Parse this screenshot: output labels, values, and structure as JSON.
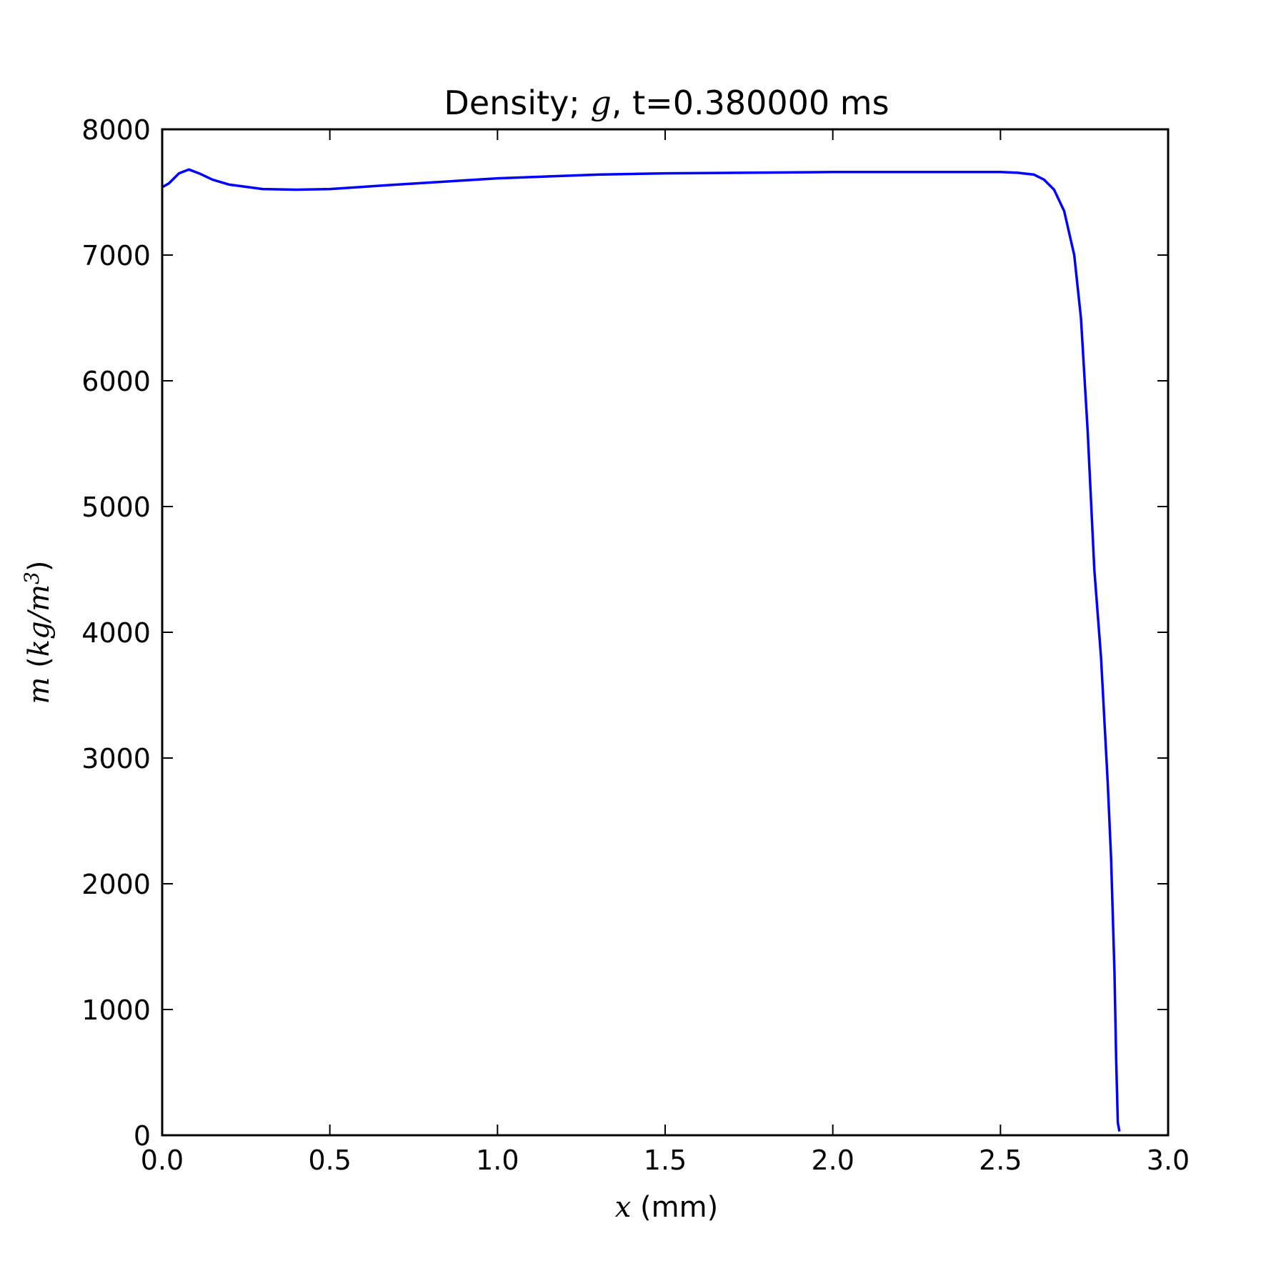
{
  "chart_data": {
    "type": "line",
    "title": {
      "prefix": "Density; ",
      "math": "g",
      "suffix": ", t=0.380000 ms"
    },
    "xlabel": {
      "math": "x",
      "text": " (mm)"
    },
    "ylabel": {
      "math_var": "m",
      "open": " (",
      "unit_main": "kg/m",
      "unit_sup": "3",
      "close": ")"
    },
    "xlim": [
      0,
      3
    ],
    "ylim": [
      0,
      8000
    ],
    "x_ticks": [
      0,
      0.5,
      1,
      1.5,
      2,
      2.5,
      3
    ],
    "x_tick_labels": [
      "0.0",
      "0.5",
      "1.0",
      "1.5",
      "2.0",
      "2.5",
      "3.0"
    ],
    "y_ticks": [
      0,
      1000,
      2000,
      3000,
      4000,
      5000,
      6000,
      7000,
      8000
    ],
    "y_tick_labels": [
      "0",
      "1000",
      "2000",
      "3000",
      "4000",
      "5000",
      "6000",
      "7000",
      "8000"
    ],
    "grid": false,
    "line_color": "#0000ff",
    "series": [
      {
        "x": [
          0.0,
          0.02,
          0.05,
          0.08,
          0.11,
          0.15,
          0.2,
          0.3,
          0.4,
          0.5,
          0.7,
          1.0,
          1.3,
          1.5,
          2.0,
          2.4,
          2.5,
          2.55,
          2.6,
          2.63,
          2.66,
          2.69,
          2.72,
          2.74,
          2.76,
          2.78,
          2.8,
          2.81,
          2.82,
          2.83,
          2.84,
          2.845,
          2.85,
          2.855
        ],
        "y": [
          7540,
          7570,
          7650,
          7680,
          7650,
          7600,
          7560,
          7525,
          7520,
          7525,
          7560,
          7610,
          7640,
          7650,
          7660,
          7660,
          7660,
          7655,
          7640,
          7600,
          7520,
          7350,
          7000,
          6500,
          5600,
          4500,
          3800,
          3300,
          2800,
          2200,
          1300,
          600,
          100,
          30
        ]
      }
    ]
  }
}
